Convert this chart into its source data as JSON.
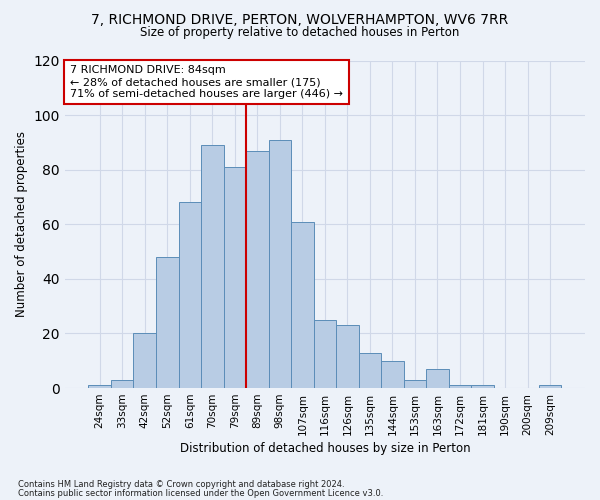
{
  "title_line1": "7, RICHMOND DRIVE, PERTON, WOLVERHAMPTON, WV6 7RR",
  "title_line2": "Size of property relative to detached houses in Perton",
  "xlabel": "Distribution of detached houses by size in Perton",
  "ylabel": "Number of detached properties",
  "categories": [
    "24sqm",
    "33sqm",
    "42sqm",
    "52sqm",
    "61sqm",
    "70sqm",
    "79sqm",
    "89sqm",
    "98sqm",
    "107sqm",
    "116sqm",
    "126sqm",
    "135sqm",
    "144sqm",
    "153sqm",
    "163sqm",
    "172sqm",
    "181sqm",
    "190sqm",
    "200sqm",
    "209sqm"
  ],
  "values": [
    1,
    3,
    20,
    48,
    68,
    89,
    81,
    87,
    91,
    61,
    25,
    23,
    13,
    10,
    3,
    7,
    1,
    1,
    0,
    0,
    1
  ],
  "bar_color": "#b8cce4",
  "bar_edge_color": "#5b8db8",
  "grid_color": "#d0d8e8",
  "vline_color": "#cc0000",
  "annotation_text": "7 RICHMOND DRIVE: 84sqm\n← 28% of detached houses are smaller (175)\n71% of semi-detached houses are larger (446) →",
  "annotation_box_color": "#ffffff",
  "annotation_box_edge": "#cc0000",
  "ylim": [
    0,
    120
  ],
  "yticks": [
    0,
    20,
    40,
    60,
    80,
    100,
    120
  ],
  "footer1": "Contains HM Land Registry data © Crown copyright and database right 2024.",
  "footer2": "Contains public sector information licensed under the Open Government Licence v3.0.",
  "bg_color": "#edf2f9"
}
